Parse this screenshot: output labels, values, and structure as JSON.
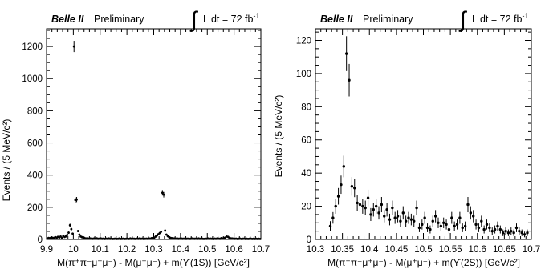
{
  "labels": {
    "experiment": "Belle II",
    "status": "Preliminary",
    "luminosity_prefix": "L dt = 72 fb",
    "luminosity_exponent": "-1"
  },
  "chart_data": [
    {
      "type": "scatter",
      "title": "",
      "xlabel": "M(π⁺π⁻μ⁺μ⁻) - M(μ⁺μ⁻) + m(ϒ(1S)) [GeV/c²]",
      "ylabel": "Events / (5 MeV/c²)",
      "xlim": [
        9.9,
        10.7
      ],
      "ylim": [
        0,
        1310
      ],
      "xticks": [
        "9.9",
        "10",
        "10.1",
        "10.2",
        "10.3",
        "10.4",
        "10.5",
        "10.6",
        "10.7"
      ],
      "yticks": [
        "0",
        "200",
        "400",
        "600",
        "800",
        "1000",
        "1200"
      ],
      "grid": false,
      "series": [
        {
          "x": [
            9.9025,
            9.9075,
            9.9125,
            9.9175,
            9.9225,
            9.9275,
            9.9325,
            9.9375,
            9.9425,
            9.9475,
            9.9525,
            9.9575,
            9.9625,
            9.9675,
            9.9725,
            9.9775,
            9.9825,
            9.9875,
            9.9925,
            9.9975,
            10.0025,
            10.0075,
            10.0125,
            10.0175,
            10.0225,
            10.0275,
            10.0325,
            10.0375,
            10.0425,
            10.0475,
            10.0525,
            10.0575,
            10.0625,
            10.0675,
            10.0725,
            10.0775,
            10.0825,
            10.0875,
            10.0925,
            10.0975,
            10.1025,
            10.1075,
            10.1125,
            10.1175,
            10.1225,
            10.1275,
            10.1325,
            10.1375,
            10.1425,
            10.1475,
            10.1525,
            10.1575,
            10.1625,
            10.1675,
            10.1725,
            10.1775,
            10.1825,
            10.1875,
            10.1925,
            10.1975,
            10.2025,
            10.2075,
            10.2125,
            10.2175,
            10.2225,
            10.2275,
            10.2325,
            10.2375,
            10.2425,
            10.2475,
            10.2525,
            10.2575,
            10.2625,
            10.2675,
            10.2725,
            10.2775,
            10.2825,
            10.2875,
            10.2925,
            10.2975,
            10.3025,
            10.3075,
            10.3125,
            10.3175,
            10.3225,
            10.3275,
            10.3325,
            10.3375,
            10.3425,
            10.3475,
            10.3525,
            10.3575,
            10.3625,
            10.3675,
            10.3725,
            10.3775,
            10.3825,
            10.3875,
            10.3925,
            10.3975,
            10.4025,
            10.4075,
            10.4125,
            10.4175,
            10.4225,
            10.4275,
            10.4325,
            10.4375,
            10.4425,
            10.4475,
            10.4525,
            10.4575,
            10.4625,
            10.4675,
            10.4725,
            10.4775,
            10.4825,
            10.4875,
            10.4925,
            10.4975,
            10.5025,
            10.5075,
            10.5125,
            10.5175,
            10.5225,
            10.5275,
            10.5325,
            10.5375,
            10.5425,
            10.5475,
            10.5525,
            10.5575,
            10.5625,
            10.5675,
            10.5725,
            10.5775,
            10.5825,
            10.5875,
            10.5925,
            10.5975,
            10.6025,
            10.6075,
            10.6125,
            10.6175,
            10.6225,
            10.6275,
            10.6325,
            10.6375,
            10.6425,
            10.6475,
            10.6525,
            10.6575,
            10.6625,
            10.6675,
            10.6725,
            10.6775,
            10.6825,
            10.6875,
            10.6925,
            10.6975
          ],
          "y": [
            6,
            9,
            8,
            12,
            10,
            9,
            14,
            11,
            16,
            12,
            18,
            10,
            22,
            15,
            19,
            28,
            42,
            88,
            64,
            36,
            1200,
            245,
            248,
            52,
            30,
            18,
            14,
            10,
            8,
            6,
            7,
            5,
            6,
            5,
            4,
            6,
            5,
            7,
            4,
            5,
            6,
            4,
            5,
            3,
            5,
            4,
            6,
            4,
            5,
            3,
            4,
            5,
            3,
            4,
            6,
            3,
            4,
            5,
            3,
            4,
            5,
            3,
            6,
            4,
            5,
            4,
            3,
            5,
            4,
            6,
            4,
            5,
            3,
            4,
            5,
            4,
            6,
            5,
            8,
            10,
            12,
            18,
            25,
            32,
            40,
            48,
            290,
            278,
            55,
            30,
            20,
            14,
            10,
            8,
            7,
            6,
            5,
            6,
            4,
            5,
            6,
            4,
            5,
            3,
            4,
            5,
            3,
            4,
            6,
            5,
            4,
            5,
            3,
            6,
            4,
            5,
            4,
            3,
            5,
            4,
            6,
            4,
            5,
            4,
            3,
            5,
            4,
            6,
            5,
            4,
            8,
            6,
            9,
            12,
            18,
            16,
            10,
            7,
            6,
            5,
            4,
            5,
            3,
            4,
            5,
            3,
            4,
            5,
            3,
            4,
            3,
            4,
            5,
            3,
            4,
            3,
            4,
            3,
            4,
            3
          ],
          "err": [
            3,
            3,
            3,
            4,
            3,
            3,
            4,
            3,
            4,
            4,
            4,
            3,
            5,
            4,
            4,
            5,
            7,
            10,
            8,
            6,
            35,
            16,
            16,
            7,
            6,
            4,
            4,
            3,
            3,
            3,
            3,
            2,
            3,
            2,
            2,
            3,
            2,
            3,
            2,
            2,
            3,
            2,
            2,
            2,
            2,
            2,
            3,
            2,
            2,
            2,
            2,
            2,
            2,
            2,
            3,
            2,
            2,
            2,
            2,
            2,
            2,
            2,
            3,
            2,
            2,
            2,
            2,
            2,
            2,
            3,
            2,
            2,
            2,
            2,
            2,
            2,
            3,
            2,
            3,
            3,
            4,
            4,
            5,
            6,
            6,
            7,
            17,
            17,
            7,
            6,
            5,
            4,
            3,
            3,
            3,
            3,
            2,
            3,
            2,
            2,
            3,
            2,
            2,
            2,
            2,
            2,
            2,
            2,
            3,
            2,
            2,
            2,
            2,
            3,
            2,
            2,
            2,
            2,
            2,
            2,
            3,
            2,
            2,
            2,
            2,
            2,
            2,
            3,
            2,
            2,
            3,
            3,
            3,
            4,
            4,
            4,
            3,
            3,
            3,
            2,
            2,
            2,
            2,
            2,
            2,
            2,
            2,
            2,
            2,
            2,
            2,
            2,
            2,
            2,
            2,
            2,
            2,
            2,
            2,
            2
          ]
        }
      ]
    },
    {
      "type": "scatter",
      "title": "",
      "xlabel": "M(π⁺π⁻μ⁺μ⁻) - M(μ⁺μ⁻) + m(ϒ(2S)) [GeV/c²]",
      "ylabel": "Events / (5 MeV/c²)",
      "xlim": [
        10.3,
        10.7
      ],
      "ylim": [
        0,
        127
      ],
      "xticks": [
        "10.3",
        "10.35",
        "10.4",
        "10.45",
        "10.5",
        "10.55",
        "10.6",
        "10.65",
        "10.7"
      ],
      "yticks": [
        "0",
        "20",
        "40",
        "60",
        "80",
        "100",
        "120"
      ],
      "grid": false,
      "series": [
        {
          "x": [
            10.3275,
            10.3325,
            10.3375,
            10.3425,
            10.3475,
            10.3525,
            10.3575,
            10.3625,
            10.3675,
            10.3725,
            10.3775,
            10.3825,
            10.3875,
            10.3925,
            10.3975,
            10.4025,
            10.4075,
            10.4125,
            10.4175,
            10.4225,
            10.4275,
            10.4325,
            10.4375,
            10.4425,
            10.4475,
            10.4525,
            10.4575,
            10.4625,
            10.4675,
            10.4725,
            10.4775,
            10.4825,
            10.4875,
            10.4925,
            10.4975,
            10.5025,
            10.5075,
            10.5125,
            10.5175,
            10.5225,
            10.5275,
            10.5325,
            10.5375,
            10.5425,
            10.5475,
            10.5525,
            10.5575,
            10.5625,
            10.5675,
            10.5725,
            10.5775,
            10.5825,
            10.5875,
            10.5925,
            10.5975,
            10.6025,
            10.6075,
            10.6125,
            10.6175,
            10.6225,
            10.6275,
            10.6325,
            10.6375,
            10.6425,
            10.6475,
            10.6525,
            10.6575,
            10.6625,
            10.6675,
            10.6725,
            10.6775,
            10.6825,
            10.6875,
            10.6925
          ],
          "y": [
            8,
            13,
            20,
            26,
            33,
            44,
            112,
            96,
            32,
            31,
            22,
            21,
            20,
            19,
            25,
            15,
            18,
            20,
            16,
            21,
            14,
            18,
            12,
            19,
            13,
            14,
            11,
            16,
            11,
            13,
            12,
            11,
            19,
            7,
            9,
            13,
            7,
            6,
            11,
            14,
            10,
            8,
            10,
            9,
            6,
            13,
            8,
            9,
            13,
            7,
            8,
            21,
            16,
            14,
            9,
            7,
            11,
            6,
            9,
            7,
            5,
            6,
            8,
            6,
            4,
            5,
            4,
            5,
            4,
            7,
            5,
            4,
            3,
            4
          ],
          "err": [
            3,
            3.5,
            4.5,
            5,
            5.5,
            6.5,
            10.5,
            9.8,
            5.6,
            5.5,
            4.7,
            4.6,
            4.5,
            4.4,
            5,
            3.9,
            4.2,
            4.5,
            4,
            4.6,
            3.7,
            4.2,
            3.5,
            4.4,
            3.6,
            3.7,
            3.3,
            4,
            3.3,
            3.6,
            3.5,
            3.3,
            4.4,
            2.6,
            3,
            3.6,
            2.6,
            2.4,
            3.3,
            3.7,
            3.2,
            2.8,
            3.2,
            3,
            2.4,
            3.6,
            2.8,
            3,
            3.6,
            2.6,
            2.8,
            4.6,
            4,
            3.7,
            3,
            2.6,
            3.3,
            2.4,
            3,
            2.6,
            2.2,
            2.4,
            2.8,
            2.4,
            2,
            2.2,
            2,
            2.2,
            2,
            2.6,
            2.2,
            2,
            1.7,
            2
          ]
        }
      ]
    }
  ]
}
